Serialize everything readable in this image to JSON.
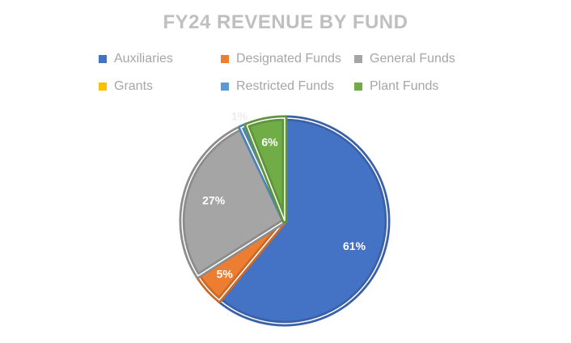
{
  "chart_data": {
    "type": "pie",
    "title": "FY24 REVENUE BY FUND",
    "legend_placement": "top",
    "start_angle": "top, clockwise",
    "slices": [
      {
        "name": "Auxiliaries",
        "value": 61,
        "label": "61%",
        "color": "#4472c4"
      },
      {
        "name": "Designated Funds",
        "value": 5,
        "label": "5%",
        "color": "#ed7d31"
      },
      {
        "name": "General Funds",
        "value": 27,
        "label": "27%",
        "color": "#a5a5a5"
      },
      {
        "name": "Grants",
        "value": 0,
        "label": "",
        "color": "#ffc000"
      },
      {
        "name": "Restricted Funds",
        "value": 1,
        "label": "1%",
        "color": "#5b9bd5"
      },
      {
        "name": "Plant Funds",
        "value": 6,
        "label": "6%",
        "color": "#70ad47"
      }
    ]
  }
}
